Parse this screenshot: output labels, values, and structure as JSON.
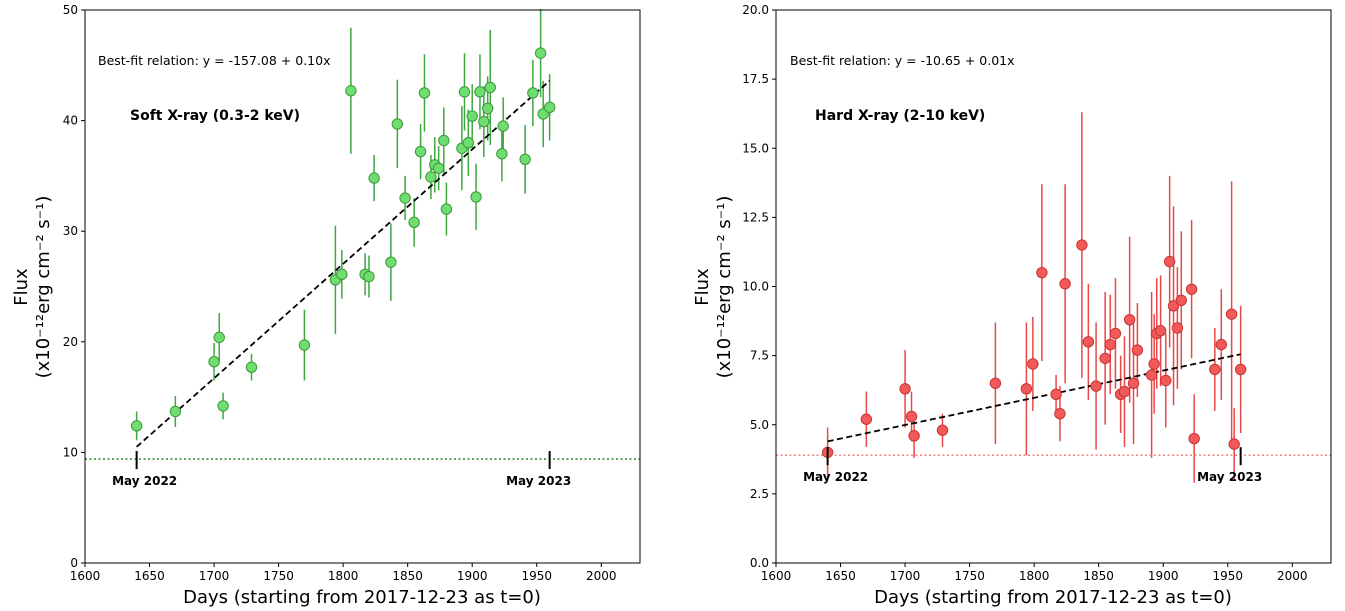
{
  "chart_data": [
    {
      "type": "scatter",
      "name": "soft",
      "annotation": "Best-fit relation: y = -157.08 + 0.10x",
      "band_label": "Soft X-ray (0.3-2 keV)",
      "xlabel": "Days (starting from 2017-12-23 as t=0)",
      "ylabel_line1": "Flux",
      "ylabel_line2": "(x10⁻¹²erg cm⁻² s⁻¹)",
      "xlim": [
        1600,
        2030
      ],
      "ylim": [
        0,
        50
      ],
      "xticks": [
        1600,
        1650,
        1700,
        1750,
        1800,
        1850,
        1900,
        1950,
        2000
      ],
      "yticks": [
        0,
        10,
        20,
        30,
        40,
        50
      ],
      "color": "#6FDD6F",
      "edge": "#3b9a3b",
      "errcolor": "#3fa73f",
      "fit": {
        "x": [
          1640,
          1960
        ],
        "y": [
          10.5,
          43.6
        ]
      },
      "baseline": {
        "y": 9.4,
        "color": "#3a8f3a"
      },
      "markers": [
        {
          "x": 1640,
          "label": "May 2022"
        },
        {
          "x": 1960,
          "label": "May 2023"
        }
      ],
      "points": [
        {
          "x": 1640,
          "y": 12.4,
          "err": 1.3
        },
        {
          "x": 1670,
          "y": 13.7,
          "err": 1.4
        },
        {
          "x": 1700,
          "y": 18.2,
          "err": 1.7
        },
        {
          "x": 1704,
          "y": 20.4,
          "err": 2.2
        },
        {
          "x": 1707,
          "y": 14.2,
          "err": 1.2
        },
        {
          "x": 1729,
          "y": 17.7,
          "err": 1.2
        },
        {
          "x": 1770,
          "y": 19.7,
          "err": 3.2
        },
        {
          "x": 1794,
          "y": 25.6,
          "err": 4.9
        },
        {
          "x": 1799,
          "y": 26.1,
          "err": 2.2
        },
        {
          "x": 1806,
          "y": 42.7,
          "err": 5.7
        },
        {
          "x": 1817,
          "y": 26.1,
          "err": 1.9
        },
        {
          "x": 1820,
          "y": 25.9,
          "err": 1.9
        },
        {
          "x": 1824,
          "y": 34.8,
          "err": 2.1
        },
        {
          "x": 1837,
          "y": 27.2,
          "err": 3.5
        },
        {
          "x": 1842,
          "y": 39.7,
          "err": 4.0
        },
        {
          "x": 1848,
          "y": 33.0,
          "err": 2.0
        },
        {
          "x": 1855,
          "y": 30.8,
          "err": 2.2
        },
        {
          "x": 1860,
          "y": 37.2,
          "err": 2.5
        },
        {
          "x": 1863,
          "y": 42.5,
          "err": 3.5
        },
        {
          "x": 1868,
          "y": 34.9,
          "err": 2.0
        },
        {
          "x": 1871,
          "y": 36.0,
          "err": 2.5
        },
        {
          "x": 1874,
          "y": 35.7,
          "err": 2.0
        },
        {
          "x": 1878,
          "y": 38.2,
          "err": 3.0
        },
        {
          "x": 1880,
          "y": 32.0,
          "err": 2.4
        },
        {
          "x": 1892,
          "y": 37.5,
          "err": 3.8
        },
        {
          "x": 1894,
          "y": 42.6,
          "err": 3.5
        },
        {
          "x": 1897,
          "y": 38.0,
          "err": 3.0
        },
        {
          "x": 1900,
          "y": 40.4,
          "err": 2.9
        },
        {
          "x": 1903,
          "y": 33.1,
          "err": 3.0
        },
        {
          "x": 1906,
          "y": 42.6,
          "err": 3.4
        },
        {
          "x": 1909,
          "y": 39.9,
          "err": 3.2
        },
        {
          "x": 1912,
          "y": 41.1,
          "err": 2.9
        },
        {
          "x": 1914,
          "y": 43.0,
          "err": 5.2
        },
        {
          "x": 1923,
          "y": 37.0,
          "err": 2.5
        },
        {
          "x": 1924,
          "y": 39.5,
          "err": 2.6
        },
        {
          "x": 1941,
          "y": 36.5,
          "err": 3.1
        },
        {
          "x": 1947,
          "y": 42.5,
          "err": 3.0
        },
        {
          "x": 1953,
          "y": 46.1,
          "err": 4.0
        },
        {
          "x": 1955,
          "y": 40.6,
          "err": 3.0
        },
        {
          "x": 1960,
          "y": 41.2,
          "err": 3.0
        }
      ]
    },
    {
      "type": "scatter",
      "name": "hard",
      "annotation": "Best-fit relation: y = -10.65 + 0.01x",
      "band_label": "Hard X-ray (2-10 keV)",
      "xlabel": "Days (starting from 2017-12-23 as t=0)",
      "ylabel_line1": "Flux",
      "ylabel_line2": "(x10⁻¹²erg cm⁻² s⁻¹)",
      "xlim": [
        1600,
        2030
      ],
      "ylim": [
        0,
        20
      ],
      "xticks": [
        1600,
        1650,
        1700,
        1750,
        1800,
        1850,
        1900,
        1950,
        2000
      ],
      "yticks": [
        "0.0",
        "2.5",
        "5.0",
        "7.5",
        "10.0",
        "12.5",
        "15.0",
        "17.5",
        "20.0"
      ],
      "color": "#F25A5A",
      "edge": "#c83434",
      "errcolor": "#e84848",
      "fit": {
        "x": [
          1640,
          1960
        ],
        "y": [
          4.4,
          7.55
        ]
      },
      "baseline": {
        "y": 3.9,
        "color": "#f08a8a"
      },
      "markers": [
        {
          "x": 1640,
          "label": "May 2022"
        },
        {
          "x": 1960,
          "label": "May 2023"
        }
      ],
      "points": [
        {
          "x": 1640,
          "y": 4.0,
          "err": 0.9
        },
        {
          "x": 1670,
          "y": 5.2,
          "err": 1.0
        },
        {
          "x": 1700,
          "y": 6.3,
          "err": 1.4
        },
        {
          "x": 1705,
          "y": 5.3,
          "err": 0.9
        },
        {
          "x": 1707,
          "y": 4.6,
          "err": 0.8
        },
        {
          "x": 1729,
          "y": 4.8,
          "err": 0.6
        },
        {
          "x": 1770,
          "y": 6.5,
          "err": 2.2
        },
        {
          "x": 1794,
          "y": 6.3,
          "err": 2.4
        },
        {
          "x": 1799,
          "y": 7.2,
          "err": 1.7
        },
        {
          "x": 1806,
          "y": 10.5,
          "err": 3.2
        },
        {
          "x": 1817,
          "y": 6.1,
          "err": 0.7
        },
        {
          "x": 1820,
          "y": 5.4,
          "err": 1.0
        },
        {
          "x": 1824,
          "y": 10.1,
          "err": 3.6
        },
        {
          "x": 1837,
          "y": 11.5,
          "err": 4.8
        },
        {
          "x": 1842,
          "y": 8.0,
          "err": 2.1
        },
        {
          "x": 1848,
          "y": 6.4,
          "err": 2.3
        },
        {
          "x": 1855,
          "y": 7.4,
          "err": 2.4
        },
        {
          "x": 1859,
          "y": 7.9,
          "err": 1.8
        },
        {
          "x": 1863,
          "y": 8.3,
          "err": 2.0
        },
        {
          "x": 1867,
          "y": 6.1,
          "err": 1.4
        },
        {
          "x": 1870,
          "y": 6.2,
          "err": 2.0
        },
        {
          "x": 1874,
          "y": 8.8,
          "err": 3.0
        },
        {
          "x": 1877,
          "y": 6.5,
          "err": 2.2
        },
        {
          "x": 1880,
          "y": 7.7,
          "err": 1.7
        },
        {
          "x": 1891,
          "y": 6.8,
          "err": 3.0
        },
        {
          "x": 1893,
          "y": 7.2,
          "err": 1.8
        },
        {
          "x": 1895,
          "y": 8.3,
          "err": 2.0
        },
        {
          "x": 1898,
          "y": 8.4,
          "err": 2.0
        },
        {
          "x": 1902,
          "y": 6.6,
          "err": 1.7
        },
        {
          "x": 1905,
          "y": 10.9,
          "err": 3.1
        },
        {
          "x": 1908,
          "y": 9.3,
          "err": 3.6
        },
        {
          "x": 1911,
          "y": 8.5,
          "err": 2.2
        },
        {
          "x": 1914,
          "y": 9.5,
          "err": 2.5
        },
        {
          "x": 1922,
          "y": 9.9,
          "err": 2.5
        },
        {
          "x": 1924,
          "y": 4.5,
          "err": 1.6
        },
        {
          "x": 1940,
          "y": 7.0,
          "err": 1.5
        },
        {
          "x": 1945,
          "y": 7.9,
          "err": 2.0
        },
        {
          "x": 1953,
          "y": 9.0,
          "err": 4.8
        },
        {
          "x": 1955,
          "y": 4.3,
          "err": 1.3
        },
        {
          "x": 1960,
          "y": 7.0,
          "err": 2.3
        }
      ]
    }
  ]
}
